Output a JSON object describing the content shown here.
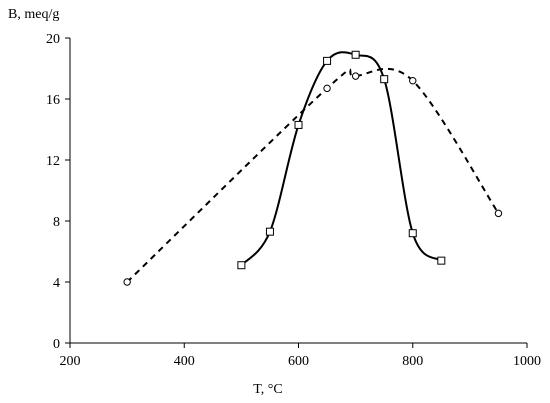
{
  "chart_data": {
    "type": "line",
    "title": "",
    "xlabel": "T,  °C",
    "ylabel": "B, meq/g",
    "xlim": [
      200,
      1000
    ],
    "ylim": [
      0,
      20
    ],
    "xticks": [
      200,
      400,
      600,
      800,
      1000
    ],
    "yticks": [
      0,
      4,
      8,
      12,
      16,
      20
    ],
    "grid": false,
    "legend": "none",
    "series": [
      {
        "style": "solid",
        "marker": "square",
        "x": [
          500,
          550,
          600,
          650,
          700,
          750,
          800,
          850
        ],
        "y": [
          5.1,
          7.3,
          14.3,
          18.5,
          18.9,
          17.3,
          7.2,
          5.4
        ]
      },
      {
        "style": "dashed",
        "marker": "circle",
        "x": [
          300,
          650,
          700,
          800,
          950
        ],
        "y": [
          4.0,
          16.7,
          17.5,
          17.2,
          8.5
        ]
      }
    ]
  }
}
